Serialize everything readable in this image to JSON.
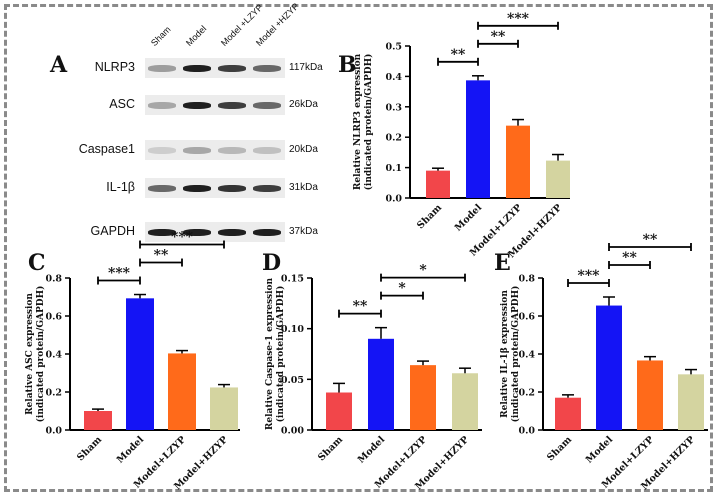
{
  "panels": {
    "A": "A",
    "B": "B",
    "C": "C",
    "D": "D",
    "E": "E"
  },
  "western_blot": {
    "lanes": [
      "Sham",
      "Model",
      "Model +LZYP",
      "Model +HZYP"
    ],
    "rows": [
      {
        "protein": "NLRP3",
        "weight": "117kDa",
        "intensity": [
          0.35,
          0.95,
          0.8,
          0.6
        ]
      },
      {
        "protein": "ASC",
        "weight": "26kDa",
        "intensity": [
          0.3,
          0.95,
          0.8,
          0.6
        ]
      },
      {
        "protein": "Caspase1",
        "weight": "20kDa",
        "intensity": [
          0.12,
          0.3,
          0.22,
          0.18
        ]
      },
      {
        "protein": "IL-1β",
        "weight": "31kDa",
        "intensity": [
          0.6,
          0.95,
          0.85,
          0.8
        ]
      },
      {
        "protein": "GAPDH",
        "weight": "37kDa",
        "intensity": [
          0.95,
          0.95,
          0.95,
          0.95
        ]
      }
    ]
  },
  "chart_data": [
    {
      "panel": "B",
      "type": "bar",
      "categories": [
        "Sham",
        "Model",
        "Model+LZYP",
        "Model+HZYP"
      ],
      "values": [
        0.09,
        0.387,
        0.238,
        0.123
      ],
      "errors": [
        0.008,
        0.015,
        0.02,
        0.02
      ],
      "colors": [
        "#f2464a",
        "#1414f5",
        "#ff6a1a",
        "#d4d4a0"
      ],
      "ylabel": [
        "Relative NLRP3 expression",
        "(indicated protein/GAPDH)"
      ],
      "ylim": [
        0,
        0.5
      ],
      "ticks": [
        "0.0",
        "0.1",
        "0.2",
        "0.3",
        "0.4",
        "0.5"
      ],
      "brackets": [
        {
          "from": 0,
          "to": 1,
          "label": "**"
        },
        {
          "from": 1,
          "to": 2,
          "label": "**"
        },
        {
          "from": 1,
          "to": 3,
          "label": "***"
        }
      ]
    },
    {
      "panel": "C",
      "type": "bar",
      "categories": [
        "Sham",
        "Model",
        "Model+LZYP",
        "Model+HZYP"
      ],
      "values": [
        0.1,
        0.693,
        0.403,
        0.224
      ],
      "errors": [
        0.01,
        0.02,
        0.015,
        0.015
      ],
      "colors": [
        "#f2464a",
        "#1414f5",
        "#ff6a1a",
        "#d4d4a0"
      ],
      "ylabel": [
        "Relative ASC expression",
        "(indicated protein/GAPDH)"
      ],
      "ylim": [
        0,
        0.8
      ],
      "ticks": [
        "0.0",
        "0.2",
        "0.4",
        "0.6",
        "0.8"
      ],
      "brackets": [
        {
          "from": 0,
          "to": 1,
          "label": "***"
        },
        {
          "from": 1,
          "to": 2,
          "label": "**"
        },
        {
          "from": 1,
          "to": 3,
          "label": "***"
        }
      ]
    },
    {
      "panel": "D",
      "type": "bar",
      "categories": [
        "Sham",
        "Model",
        "Model+LZYP",
        "Model+HZYP"
      ],
      "values": [
        0.037,
        0.09,
        0.064,
        0.056
      ],
      "errors": [
        0.009,
        0.011,
        0.004,
        0.005
      ],
      "colors": [
        "#f2464a",
        "#1414f5",
        "#ff6a1a",
        "#d4d4a0"
      ],
      "ylabel": [
        "Relative Caspase-1 expression",
        "(indicated protein/GAPDH)"
      ],
      "ylim": [
        0,
        0.15
      ],
      "ticks": [
        "0.00",
        "0.05",
        "0.10",
        "0.15"
      ],
      "brackets": [
        {
          "from": 0,
          "to": 1,
          "label": "**"
        },
        {
          "from": 1,
          "to": 2,
          "label": "*"
        },
        {
          "from": 1,
          "to": 3,
          "label": "*"
        }
      ]
    },
    {
      "panel": "E",
      "type": "bar",
      "categories": [
        "Sham",
        "Model",
        "Model+LZYP",
        "Model+HZYP"
      ],
      "values": [
        0.17,
        0.655,
        0.366,
        0.293
      ],
      "errors": [
        0.015,
        0.045,
        0.02,
        0.025
      ],
      "colors": [
        "#f2464a",
        "#1414f5",
        "#ff6a1a",
        "#d4d4a0"
      ],
      "ylabel": [
        "Relative IL-1β expression",
        "(indicated protein/GAPDH)"
      ],
      "ylim": [
        0,
        0.8
      ],
      "ticks": [
        "0.0",
        "0.2",
        "0.4",
        "0.6",
        "0.8"
      ],
      "brackets": [
        {
          "from": 0,
          "to": 1,
          "label": "***"
        },
        {
          "from": 1,
          "to": 2,
          "label": "**"
        },
        {
          "from": 1,
          "to": 3,
          "label": "**"
        }
      ]
    }
  ]
}
